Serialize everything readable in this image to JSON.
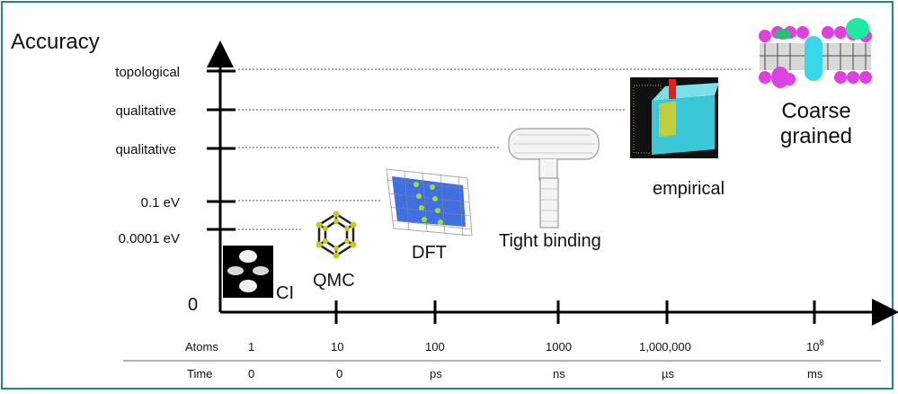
{
  "y_axis": {
    "title": "Accuracy",
    "origin_label": "0",
    "ticks": [
      "topological",
      "qualitative",
      "qualitative",
      "0.1 eV",
      "0.0001 eV"
    ]
  },
  "methods": [
    {
      "label": "CI",
      "icon": "ci-orbital-icon"
    },
    {
      "label": "QMC",
      "icon": "fullerene-cage-icon"
    },
    {
      "label": "DFT",
      "icon": "dft-slab-icon"
    },
    {
      "label": "Tight binding",
      "icon": "nanotube-junction-icon"
    },
    {
      "label": "empirical",
      "icon": "simulation-box-icon"
    },
    {
      "label_line1": "Coarse",
      "label_line2": "grained",
      "icon": "lipid-membrane-icon"
    }
  ],
  "table": {
    "row_atoms_label": "Atoms",
    "row_time_label": "Time",
    "atoms": [
      "1",
      "10",
      "100",
      "1000",
      "1,000,000",
      "10"
    ],
    "atoms_last_superscript": "8",
    "time": [
      "0",
      "0",
      "ps",
      "ns",
      "µs",
      "ms"
    ]
  },
  "colors": {
    "frame": "#1f8a7a",
    "axis": "#000000",
    "dft_blue": "#2a5fe0",
    "membrane_magenta": "#e040e0",
    "membrane_cyan": "#38e0e0"
  }
}
